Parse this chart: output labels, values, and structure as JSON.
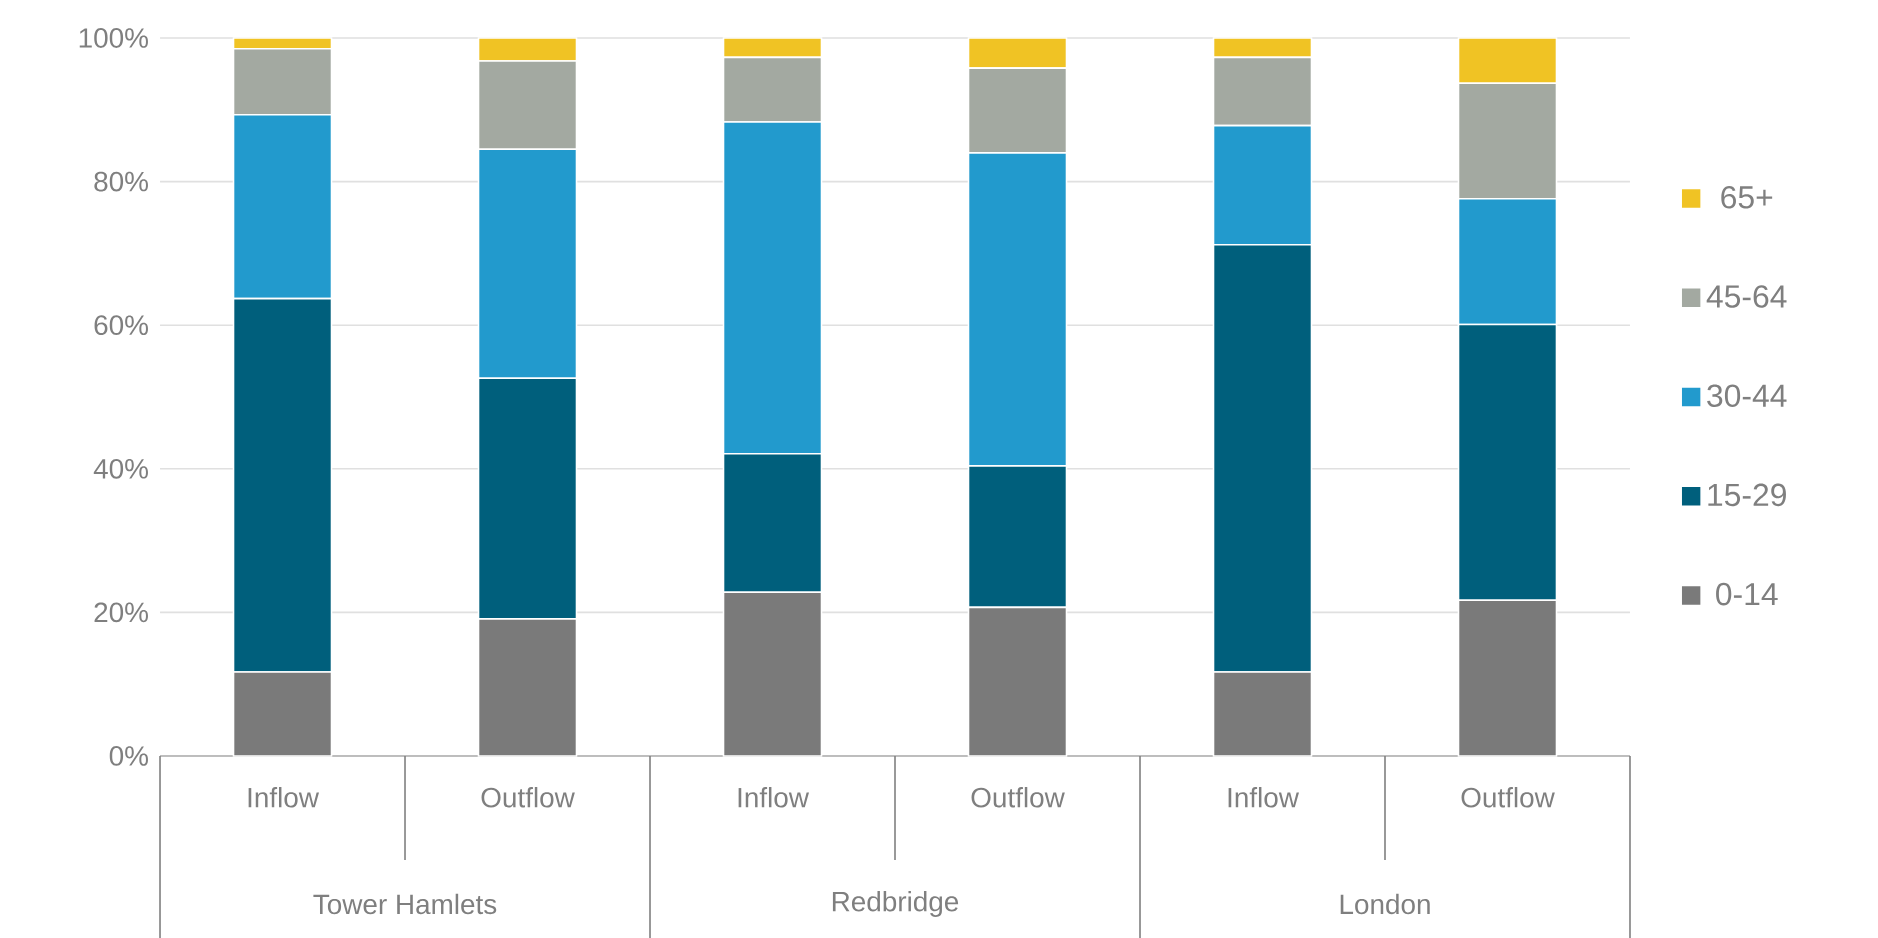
{
  "chart_data": {
    "type": "bar",
    "stacked": true,
    "categories": [
      "Inflow",
      "Outflow",
      "Inflow",
      "Outflow",
      "Inflow",
      "Outflow"
    ],
    "annotations": [
      "Tower Hamlets",
      "Redbridge",
      "London"
    ],
    "series": [
      {
        "name": "0-14",
        "color": "#7a7a7a",
        "values": [
          11.7,
          19.1,
          22.8,
          20.7,
          11.7,
          21.7
        ]
      },
      {
        "name": "15-29",
        "color": "#005f7c",
        "values": [
          52.0,
          33.5,
          19.3,
          19.7,
          59.5,
          38.4
        ]
      },
      {
        "name": "30-44",
        "color": "#229acd",
        "values": [
          25.6,
          31.9,
          46.2,
          43.6,
          16.6,
          17.5
        ]
      },
      {
        "name": "45-64",
        "color": "#a3a9a1",
        "values": [
          9.2,
          12.3,
          9.0,
          11.8,
          9.5,
          16.1
        ]
      },
      {
        "name": "65+",
        "color": "#f0c324",
        "values": [
          1.5,
          3.2,
          2.7,
          4.2,
          2.7,
          6.3
        ]
      }
    ],
    "ylim": [
      0,
      100
    ],
    "yticks": [
      {
        "value": 0,
        "label": "0%"
      },
      {
        "value": 20,
        "label": "20%"
      },
      {
        "value": 40,
        "label": "40%"
      },
      {
        "value": 60,
        "label": "60%"
      },
      {
        "value": 80,
        "label": "80%"
      },
      {
        "value": 100,
        "label": "100%"
      }
    ],
    "grid": "y",
    "legend": "right"
  }
}
